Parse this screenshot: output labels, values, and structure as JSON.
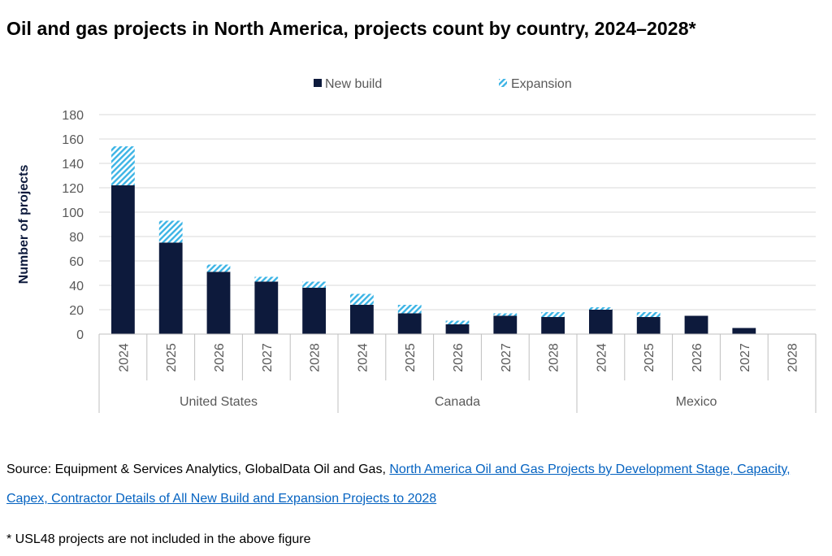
{
  "title": "Oil and gas projects in North America, projects count by country, 2024–2028*",
  "source": {
    "prefix": "Source: Equipment & Services Analytics, GlobalData Oil and Gas, ",
    "link_text": "North America Oil and Gas Projects by Development Stage, Capacity, Capex, Contractor Details of All New Build and Expansion Projects to 2028"
  },
  "footnote": "* USL48 projects are not included in the above figure",
  "colors": {
    "new_build": "#0d1a3c",
    "expansion": "#3cb4e5",
    "grid": "#d9d9d9",
    "axis_text": "#595959"
  },
  "chart_data": {
    "type": "bar",
    "stacked": true,
    "ylabel": "Number of projects",
    "xlabel": "",
    "ylim": [
      0,
      180
    ],
    "yticks": [
      0,
      20,
      40,
      60,
      80,
      100,
      120,
      140,
      160,
      180
    ],
    "grid": true,
    "legend_position": "top-center",
    "groups": [
      {
        "name": "United States",
        "categories": [
          "2024",
          "2025",
          "2026",
          "2027",
          "2028"
        ]
      },
      {
        "name": "Canada",
        "categories": [
          "2024",
          "2025",
          "2026",
          "2027",
          "2028"
        ]
      },
      {
        "name": "Mexico",
        "categories": [
          "2024",
          "2025",
          "2026",
          "2027",
          "2028"
        ]
      }
    ],
    "series": [
      {
        "name": "New build",
        "values": [
          122,
          75,
          51,
          43,
          38,
          24,
          17,
          8,
          15,
          14,
          20,
          14,
          15,
          5,
          0
        ]
      },
      {
        "name": "Expansion",
        "values": [
          32,
          18,
          6,
          4,
          5,
          9,
          7,
          3,
          2,
          4,
          2,
          4,
          0,
          0,
          0
        ]
      }
    ]
  }
}
